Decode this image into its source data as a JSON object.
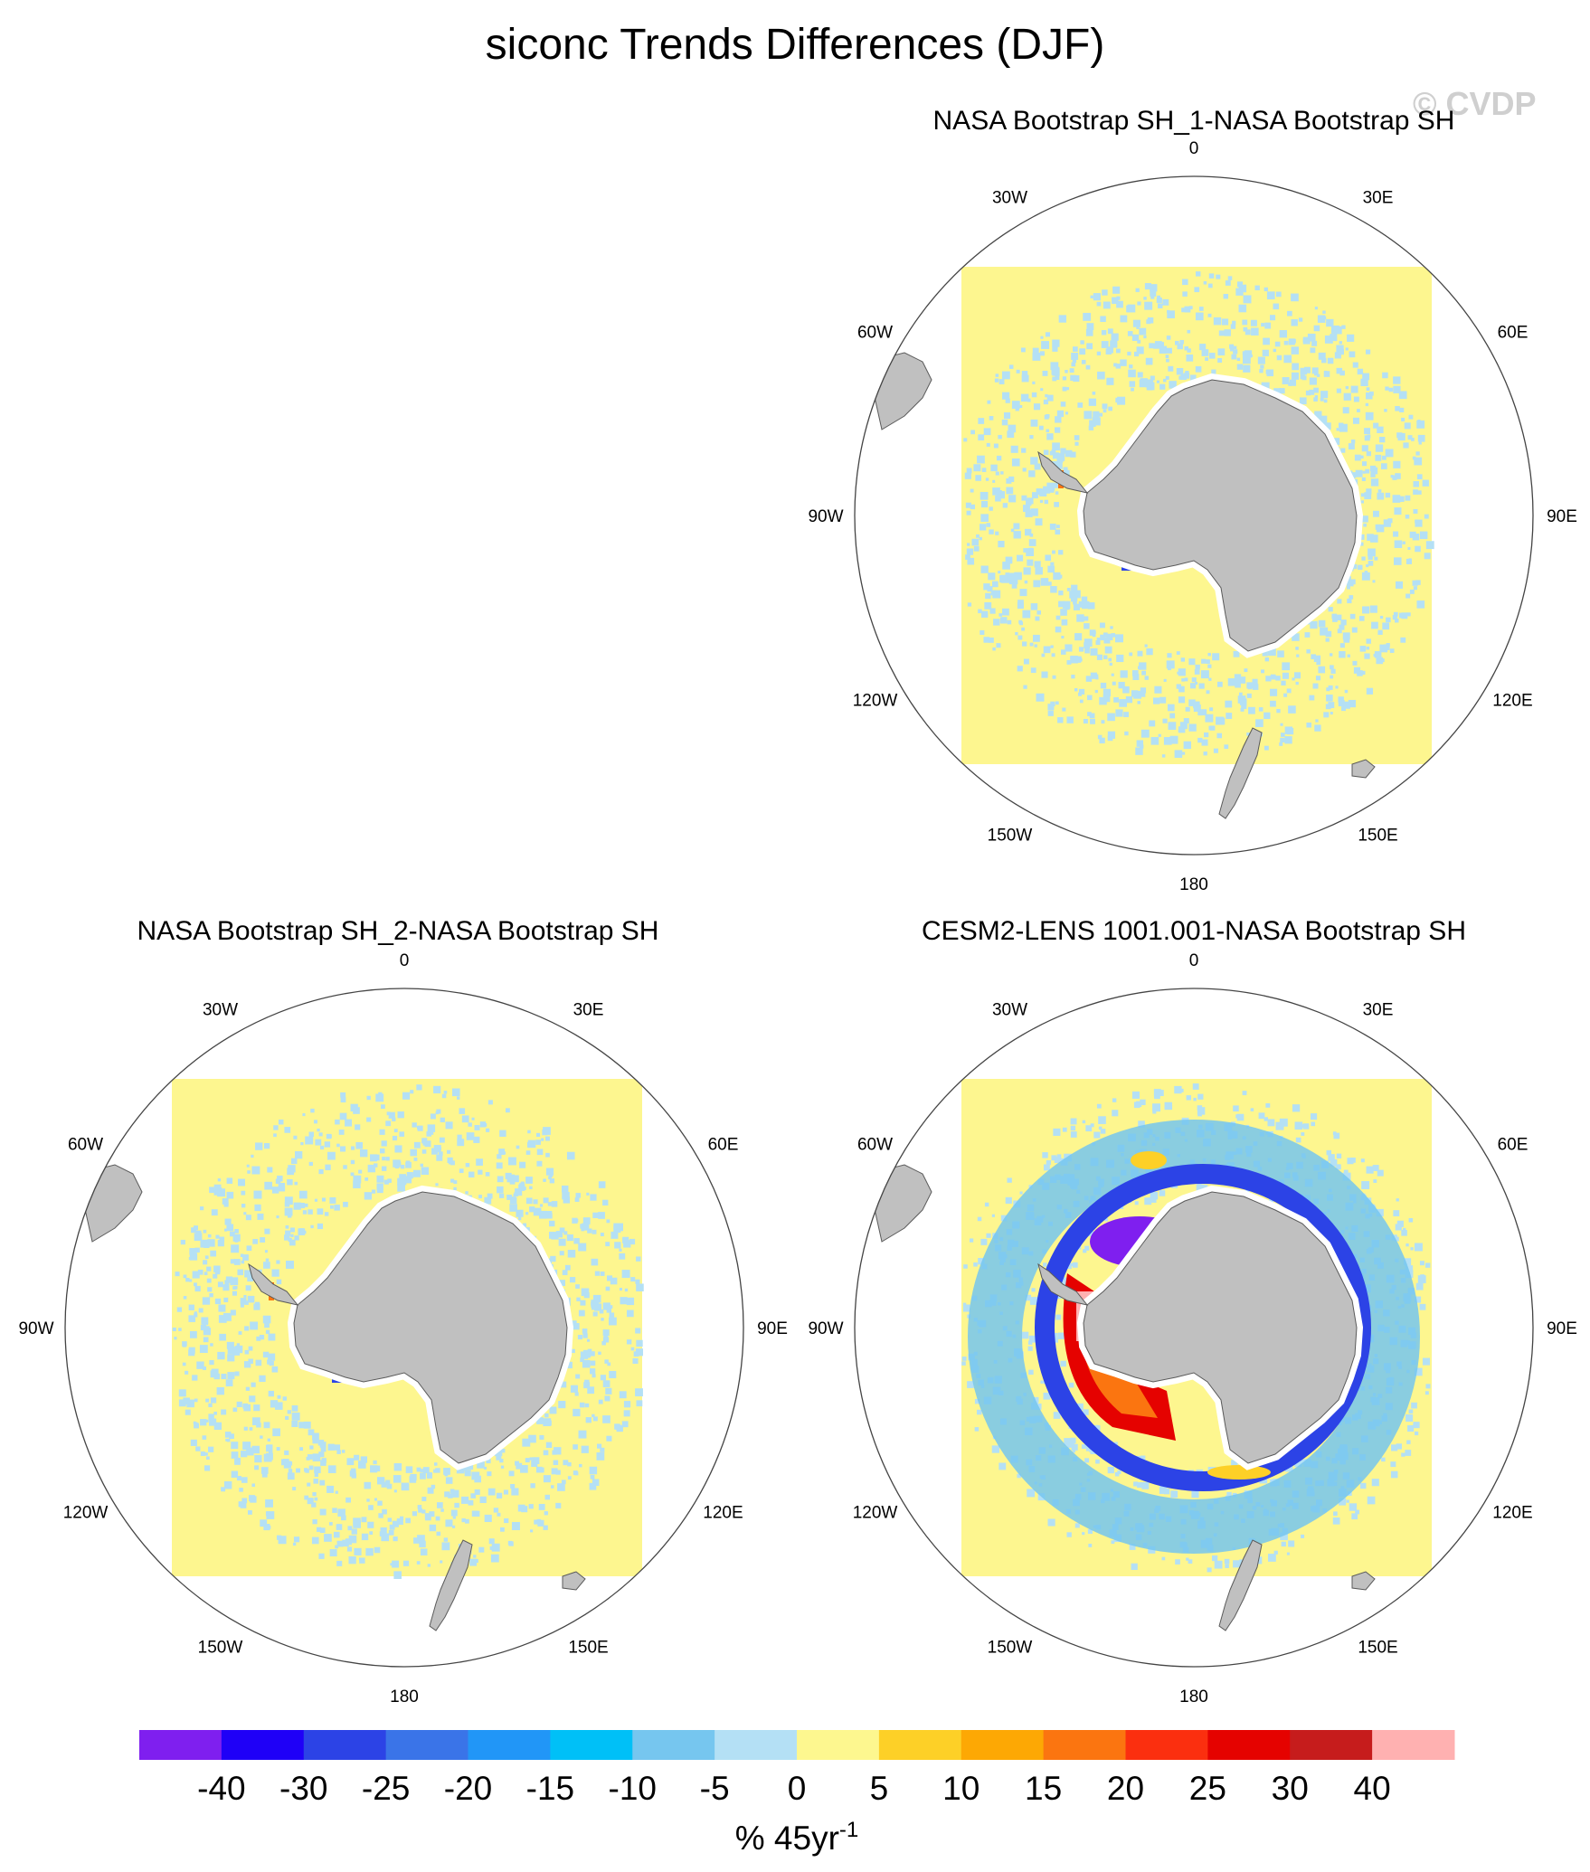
{
  "title": "siconc Trends Differences (DJF)",
  "watermark": "© CVDP",
  "panels": [
    {
      "id": "p1",
      "title": "NASA Bootstrap SH_1-NASA Bootstrap SH",
      "pattern": "scatter-light"
    },
    {
      "id": "p2",
      "title": "NASA Bootstrap SH_2-NASA Bootstrap SH",
      "pattern": "scatter-light"
    },
    {
      "id": "p3",
      "title": "CESM2-LENS 1001.001-NASA Bootstrap SH",
      "pattern": "strong-ring"
    }
  ],
  "longitude_labels": [
    "0",
    "30E",
    "60E",
    "90E",
    "120E",
    "150E",
    "180",
    "150W",
    "120W",
    "90W",
    "60W",
    "30W"
  ],
  "colorbar": {
    "colors": [
      "#7f1fef",
      "#1f00f7",
      "#2c43e6",
      "#3a74e8",
      "#2196f7",
      "#00c0f7",
      "#76c6ef",
      "#b4e0f5",
      "#fdf78f",
      "#fdd027",
      "#fda804",
      "#fb7510",
      "#fb2f0f",
      "#e50200",
      "#c61c1c",
      "#ffb1b1"
    ],
    "labels": [
      "-40",
      "-30",
      "-25",
      "-20",
      "-15",
      "-10",
      "-5",
      "0",
      "5",
      "10",
      "15",
      "20",
      "25",
      "30",
      "40"
    ],
    "units_main": "% 45yr",
    "units_sup": "-1"
  },
  "colors": {
    "land": "#c0c0c0",
    "ocean_bg": "#fdf68f",
    "light_blue": "#b4e0f5"
  }
}
